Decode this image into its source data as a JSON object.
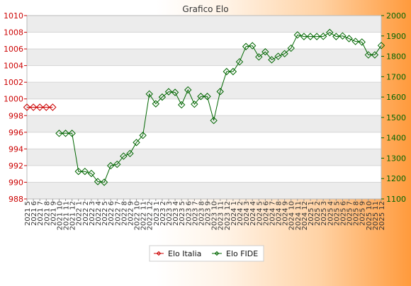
{
  "chart_data": {
    "type": "line",
    "title": "Grafico Elo",
    "categories": [
      "2021 5",
      "2021 6",
      "2021 7",
      "2021 8",
      "2021 9",
      "2021 10",
      "2021 11",
      "2021 12",
      "2022 1",
      "2022 2",
      "2022 3",
      "2022 4",
      "2022 5",
      "2022 6",
      "2022 7",
      "2022 8",
      "2022 9",
      "2022 10",
      "2022 11",
      "2022 12",
      "2023 1",
      "2023 2",
      "2023 3",
      "2023 4",
      "2023 5",
      "2023 6",
      "2023 7",
      "2023 8",
      "2023 9",
      "2023 10",
      "2023 11",
      "2023 12",
      "2024 1",
      "2024 2",
      "2024 3",
      "2024 4",
      "2024 5",
      "2024 6",
      "2024 7",
      "2024 8",
      "2024 9",
      "2024 10",
      "2024 11",
      "2024 12",
      "2025 1",
      "2025 2",
      "2025 3",
      "2025 4",
      "2025 5",
      "2025 6",
      "2025 7",
      "2025 8",
      "2025 9",
      "2025 10",
      "2025 11",
      "2025 12"
    ],
    "series": [
      {
        "name": "Elo Italia",
        "axis": "left",
        "color": "#cc0000",
        "values": [
          999,
          999,
          999,
          999,
          999,
          null,
          null,
          null,
          null,
          null,
          null,
          null,
          null,
          null,
          null,
          null,
          null,
          null,
          null,
          null,
          null,
          null,
          null,
          null,
          null,
          null,
          null,
          null,
          null,
          null,
          null,
          null,
          null,
          null,
          null,
          null,
          null,
          null,
          null,
          null,
          null,
          null,
          null,
          null,
          null,
          null,
          null,
          null,
          null,
          null,
          null,
          null,
          null,
          null,
          null,
          null
        ]
      },
      {
        "name": "Elo FIDE",
        "axis": "right",
        "color": "#006600",
        "values": [
          null,
          null,
          null,
          null,
          null,
          1422,
          1422,
          1422,
          1235,
          1235,
          1225,
          1185,
          1182,
          1263,
          1270,
          1310,
          1323,
          1377,
          1412,
          1615,
          1567,
          1600,
          1626,
          1623,
          1562,
          1635,
          1565,
          1603,
          1603,
          1485,
          1627,
          1725,
          1725,
          1773,
          1848,
          1852,
          1797,
          1822,
          1783,
          1800,
          1813,
          1840,
          1905,
          1897,
          1897,
          1897,
          1898,
          1917,
          1897,
          1900,
          1887,
          1873,
          1870,
          1807,
          1807,
          1853
        ]
      }
    ],
    "ylim_left": [
      988,
      1010
    ],
    "yticks_left": [
      988,
      990,
      992,
      994,
      996,
      998,
      1000,
      1002,
      1004,
      1006,
      1008,
      1010
    ],
    "ylim_right": [
      1100,
      2000
    ],
    "yticks_right": [
      1100,
      1200,
      1300,
      1400,
      1500,
      1600,
      1700,
      1800,
      1900,
      2000
    ],
    "grid": true,
    "legend_position": "bottom"
  }
}
